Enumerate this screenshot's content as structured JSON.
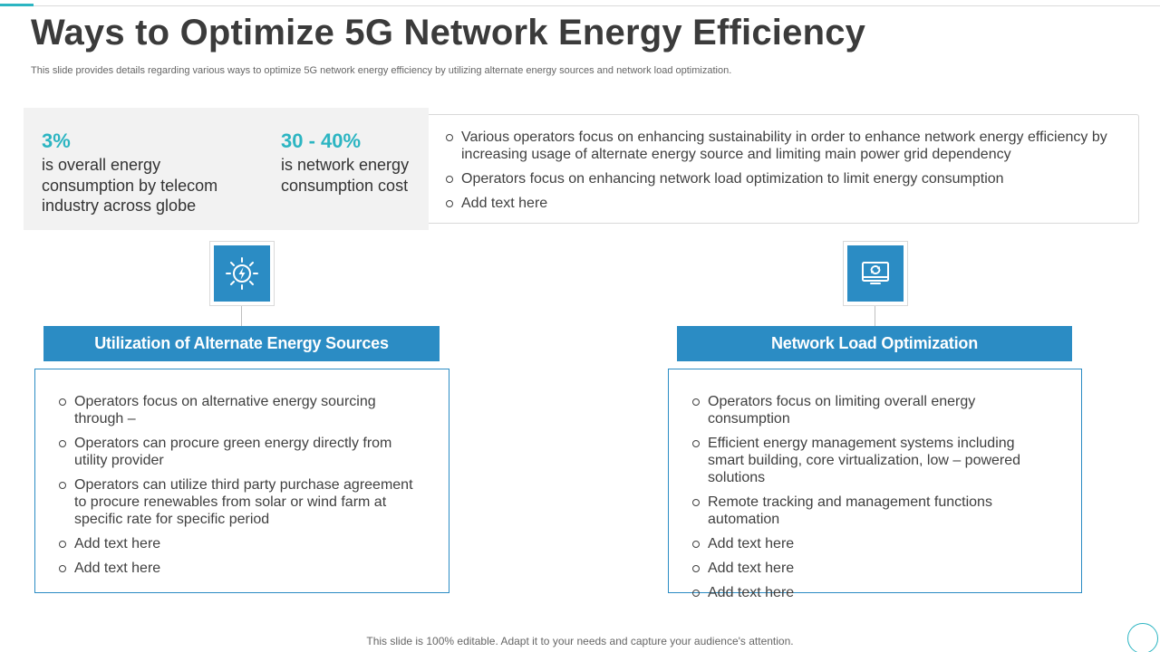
{
  "slide": {
    "title": "Ways to Optimize 5G Network Energy Efficiency",
    "subtitle": "This slide provides details regarding various ways to optimize 5G network energy efficiency by utilizing alternate energy sources and network load optimization."
  },
  "stats": [
    {
      "value": "3%",
      "description": "is overall energy consumption by telecom industry across globe"
    },
    {
      "value": "30 - 40%",
      "description": "is network energy consumption cost"
    }
  ],
  "overview_bullets": [
    "Various operators focus on enhancing sustainability in order to enhance network energy efficiency by increasing usage of alternate energy source and limiting main power grid dependency",
    "Operators focus on enhancing network load optimization to limit energy consumption",
    "Add text here"
  ],
  "sections": [
    {
      "heading": "Utilization of Alternate Energy Sources",
      "icon": "energy-sun-bolt-icon",
      "bullets": [
        "Operators focus on alternative energy sourcing through –",
        "Operators can procure green energy directly from utility provider",
        "Operators can utilize third party purchase agreement to procure renewables from solar or wind farm at specific rate for specific period",
        "Add text here",
        "Add text here"
      ]
    },
    {
      "heading": "Network Load Optimization",
      "icon": "monitor-refresh-icon",
      "bullets": [
        "Operators focus on limiting overall energy consumption",
        "Efficient energy management systems including smart building, core virtualization,  low – powered solutions",
        "Remote tracking and management functions automation",
        "Add text here",
        "Add text here",
        "Add text here"
      ]
    }
  ],
  "footer": "This slide is 100% editable. Adapt it to your needs and capture your audience's attention.",
  "colors": {
    "accent_teal": "#2cb5c2",
    "header_blue": "#2b8cc4",
    "stats_background": "#f2f2f2"
  }
}
